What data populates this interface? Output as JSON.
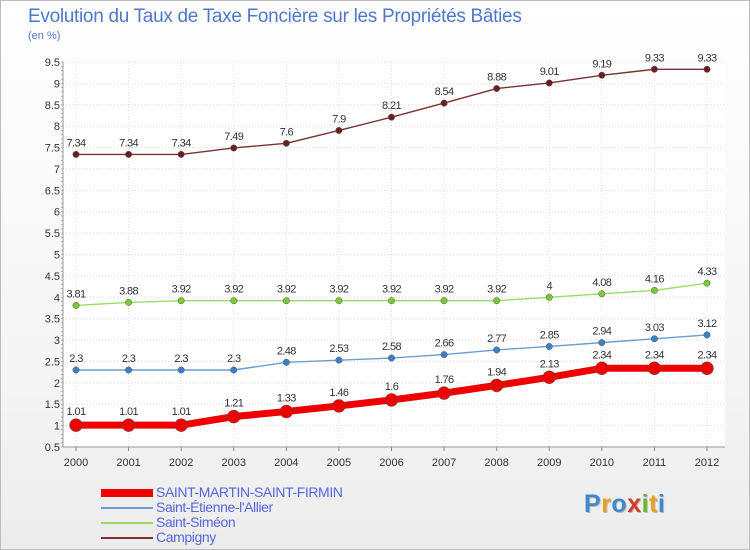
{
  "title": "Evolution du Taux de Taxe Foncière sur les Propriétés Bâties",
  "unit": "(en %)",
  "logo": {
    "text": "Proxiti",
    "colors": [
      "#3e88cc",
      "#e8a020",
      "#3e88cc",
      "#d23a2a",
      "#6bb42a",
      "#e8a020",
      "#3e88cc"
    ]
  },
  "chart_data": {
    "type": "line",
    "title": "Evolution du Taux de Taxe Foncière sur les Propriétés Bâties",
    "ylabel": "(en %)",
    "x": [
      "2000",
      "2001",
      "2002",
      "2003",
      "2004",
      "2005",
      "2006",
      "2007",
      "2008",
      "2009",
      "2010",
      "2011",
      "2012"
    ],
    "ylim": [
      0.5,
      9.5
    ],
    "yticks": [
      "0.5",
      "1",
      "1.5",
      "2",
      "2.5",
      "3",
      "3.5",
      "4",
      "4.5",
      "5",
      "5.5",
      "6",
      "6.5",
      "7",
      "7.5",
      "8",
      "8.5",
      "9",
      "9.5"
    ],
    "grid": true,
    "legend_position": "bottom-left",
    "series": [
      {
        "name": "Campigny",
        "color": "#6b1f1f",
        "line_color": "#7a3232",
        "width": 1.4,
        "marker": 3.2,
        "values": [
          7.34,
          7.34,
          7.34,
          7.49,
          7.6,
          7.9,
          8.21,
          8.54,
          8.88,
          9.01,
          9.19,
          9.33,
          9.33
        ],
        "labels": [
          "7.34",
          "7.34",
          "7.34",
          "7.49",
          "7.6",
          "7.9",
          "8.21",
          "8.54",
          "8.88",
          "9.01",
          "9.19",
          "9.33",
          "9.33"
        ]
      },
      {
        "name": "Saint-Siméon",
        "color": "#77cc33",
        "line_color": "#99dd66",
        "width": 1.4,
        "marker": 3.2,
        "values": [
          3.81,
          3.88,
          3.92,
          3.92,
          3.92,
          3.92,
          3.92,
          3.92,
          3.92,
          4,
          4.08,
          4.16,
          4.33
        ],
        "labels": [
          "3.81",
          "3.88",
          "3.92",
          "3.92",
          "3.92",
          "3.92",
          "3.92",
          "3.92",
          "3.92",
          "4",
          "4.08",
          "4.16",
          "4.33"
        ]
      },
      {
        "name": "Saint-Étienne-l'Allier",
        "color": "#3d7fc4",
        "line_color": "#6c9cd0",
        "width": 1.4,
        "marker": 3.2,
        "values": [
          2.3,
          2.3,
          2.3,
          2.3,
          2.48,
          2.53,
          2.58,
          2.66,
          2.77,
          2.85,
          2.94,
          3.03,
          3.12
        ],
        "labels": [
          "2.3",
          "2.3",
          "2.3",
          "2.3",
          "2.48",
          "2.53",
          "2.58",
          "2.66",
          "2.77",
          "2.85",
          "2.94",
          "3.03",
          "3.12"
        ]
      },
      {
        "name": "SAINT-MARTIN-SAINT-FIRMIN",
        "color": "#ee0000",
        "line_color": "#ee0000",
        "width": 7,
        "marker": 6.5,
        "values": [
          1.01,
          1.01,
          1.01,
          1.21,
          1.33,
          1.46,
          1.6,
          1.76,
          1.94,
          2.13,
          2.34,
          2.34,
          2.34
        ],
        "labels": [
          "1.01",
          "1.01",
          "1.01",
          "1.21",
          "1.33",
          "1.46",
          "1.6",
          "1.76",
          "1.94",
          "2.13",
          "2.34",
          "2.34",
          "2.34"
        ]
      }
    ],
    "legend_order": [
      "SAINT-MARTIN-SAINT-FIRMIN",
      "Saint-Étienne-l'Allier",
      "Saint-Siméon",
      "Campigny"
    ]
  }
}
